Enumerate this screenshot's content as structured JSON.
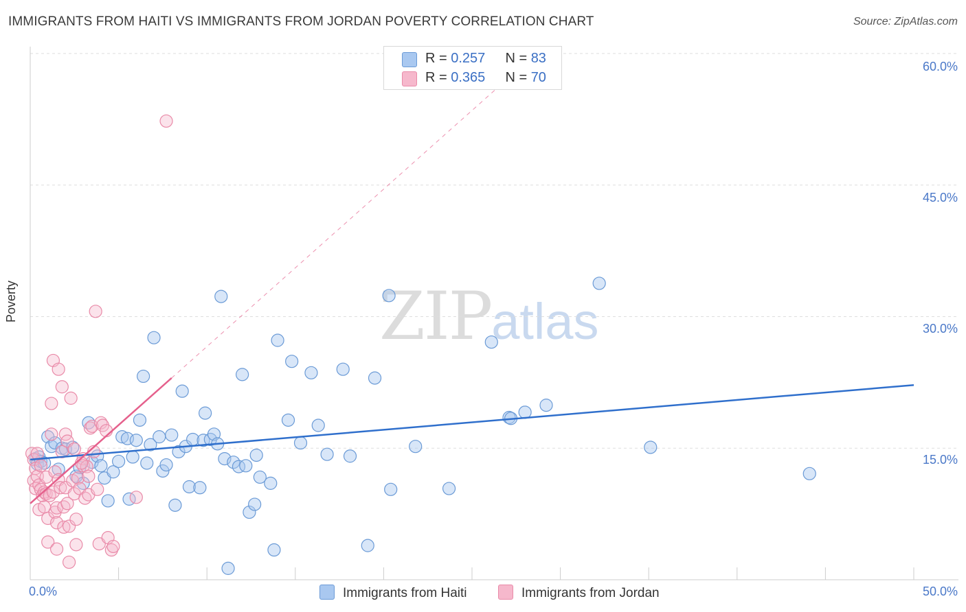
{
  "header": {
    "title": "IMMIGRANTS FROM HAITI VS IMMIGRANTS FROM JORDAN POVERTY CORRELATION CHART",
    "source": "Source: ZipAtlas.com"
  },
  "watermark": {
    "zip": "ZIP",
    "atlas": "atlas"
  },
  "colors": {
    "haiti_fill": "#a9c8f0",
    "haiti_stroke": "#6a9ad6",
    "haiti_line": "#2f6fcc",
    "jordan_fill": "#f6b8cc",
    "jordan_stroke": "#e98aa8",
    "jordan_line": "#e5608c",
    "grid": "#dddddd",
    "tick_label": "#4a78c8"
  },
  "legend": {
    "haiti": {
      "r_label": "R = ",
      "r_value": "0.257",
      "n_label": "N = ",
      "n_value": "83"
    },
    "jordan": {
      "r_label": "R = ",
      "r_value": "0.365",
      "n_label": "N = ",
      "n_value": "70"
    }
  },
  "chart_data": {
    "type": "scatter",
    "title": "IMMIGRANTS FROM HAITI VS IMMIGRANTS FROM JORDAN POVERTY CORRELATION CHART",
    "xlabel": "",
    "ylabel": "Poverty",
    "xlim": [
      0,
      50
    ],
    "ylim": [
      0,
      60
    ],
    "x_tick_labels": [
      "0.0%",
      "50.0%"
    ],
    "y_ticks": [
      15,
      30,
      45,
      60
    ],
    "y_tick_labels": [
      "15.0%",
      "30.0%",
      "45.0%",
      "60.0%"
    ],
    "grid": true,
    "legend": [
      "Immigrants from Haiti",
      "Immigrants from Jordan"
    ],
    "series": [
      {
        "name": "Immigrants from Haiti",
        "R": 0.257,
        "N": 83,
        "trend": {
          "x": [
            0,
            50
          ],
          "y": [
            13.7,
            22.2
          ],
          "style": "solid"
        },
        "points": [
          [
            0.3,
            13.8
          ],
          [
            0.4,
            13.2
          ],
          [
            0.5,
            14.0
          ],
          [
            0.6,
            13.5
          ],
          [
            0.8,
            13.3
          ],
          [
            1.0,
            16.3
          ],
          [
            1.2,
            15.2
          ],
          [
            1.4,
            15.6
          ],
          [
            1.6,
            12.6
          ],
          [
            1.8,
            15.0
          ],
          [
            2.0,
            14.9
          ],
          [
            2.4,
            15.1
          ],
          [
            2.6,
            11.8
          ],
          [
            2.8,
            12.8
          ],
          [
            3.0,
            11.0
          ],
          [
            3.3,
            17.9
          ],
          [
            3.5,
            13.4
          ],
          [
            3.8,
            14.1
          ],
          [
            4.0,
            13.0
          ],
          [
            4.2,
            11.6
          ],
          [
            4.4,
            9.0
          ],
          [
            4.7,
            12.3
          ],
          [
            5.0,
            13.5
          ],
          [
            5.2,
            16.3
          ],
          [
            5.5,
            16.1
          ],
          [
            5.6,
            9.2
          ],
          [
            5.8,
            14.0
          ],
          [
            6.0,
            15.9
          ],
          [
            6.2,
            18.2
          ],
          [
            6.4,
            23.2
          ],
          [
            6.6,
            13.3
          ],
          [
            6.8,
            15.4
          ],
          [
            7.0,
            27.6
          ],
          [
            7.3,
            16.3
          ],
          [
            7.5,
            12.4
          ],
          [
            7.7,
            13.1
          ],
          [
            8.0,
            16.5
          ],
          [
            8.2,
            8.5
          ],
          [
            8.4,
            14.6
          ],
          [
            8.6,
            21.5
          ],
          [
            8.8,
            15.2
          ],
          [
            9.0,
            10.6
          ],
          [
            9.2,
            16.0
          ],
          [
            9.6,
            10.5
          ],
          [
            9.8,
            15.9
          ],
          [
            9.9,
            19.0
          ],
          [
            10.2,
            16.0
          ],
          [
            10.4,
            16.6
          ],
          [
            10.6,
            15.5
          ],
          [
            10.8,
            32.3
          ],
          [
            11.0,
            13.8
          ],
          [
            11.2,
            1.3
          ],
          [
            11.5,
            13.4
          ],
          [
            11.8,
            12.9
          ],
          [
            12.0,
            23.4
          ],
          [
            12.2,
            13.0
          ],
          [
            12.4,
            7.7
          ],
          [
            12.7,
            8.6
          ],
          [
            12.8,
            14.2
          ],
          [
            13.0,
            11.7
          ],
          [
            13.6,
            11.0
          ],
          [
            13.8,
            3.4
          ],
          [
            14.0,
            27.3
          ],
          [
            14.6,
            18.2
          ],
          [
            14.8,
            24.9
          ],
          [
            15.3,
            15.6
          ],
          [
            15.9,
            23.6
          ],
          [
            16.3,
            17.6
          ],
          [
            16.8,
            14.3
          ],
          [
            17.7,
            24.0
          ],
          [
            18.1,
            14.1
          ],
          [
            19.1,
            3.9
          ],
          [
            19.5,
            23.0
          ],
          [
            20.3,
            32.4
          ],
          [
            20.4,
            10.3
          ],
          [
            21.8,
            15.2
          ],
          [
            23.7,
            10.4
          ],
          [
            26.1,
            27.1
          ],
          [
            27.1,
            18.5
          ],
          [
            27.2,
            18.4
          ],
          [
            28.0,
            19.1
          ],
          [
            29.2,
            19.9
          ],
          [
            32.2,
            33.8
          ],
          [
            35.1,
            15.1
          ],
          [
            44.1,
            12.1
          ]
        ]
      },
      {
        "name": "Immigrants from Jordan",
        "R": 0.365,
        "N": 70,
        "trend": {
          "x": [
            0,
            8
          ],
          "y": [
            8.7,
            23.0
          ],
          "style": "solid",
          "extended": {
            "x": [
              8,
              26.5
            ],
            "y": [
              23.0,
              56.2
            ],
            "style": "dashed"
          }
        },
        "points": [
          [
            0.1,
            14.4
          ],
          [
            0.2,
            11.3
          ],
          [
            0.2,
            13.7
          ],
          [
            0.3,
            12.7
          ],
          [
            0.3,
            10.4
          ],
          [
            0.4,
            14.4
          ],
          [
            0.4,
            11.8
          ],
          [
            0.5,
            10.8
          ],
          [
            0.5,
            8.0
          ],
          [
            0.6,
            13.0
          ],
          [
            0.6,
            10.3
          ],
          [
            0.7,
            9.6
          ],
          [
            0.8,
            10.0
          ],
          [
            0.8,
            8.3
          ],
          [
            0.9,
            11.7
          ],
          [
            0.9,
            9.8
          ],
          [
            1.0,
            7.0
          ],
          [
            1.0,
            4.3
          ],
          [
            1.1,
            9.6
          ],
          [
            1.2,
            20.1
          ],
          [
            1.2,
            16.6
          ],
          [
            1.3,
            25.0
          ],
          [
            1.3,
            10.0
          ],
          [
            1.4,
            7.7
          ],
          [
            1.4,
            12.3
          ],
          [
            1.5,
            8.2
          ],
          [
            1.5,
            6.5
          ],
          [
            1.6,
            24.0
          ],
          [
            1.6,
            11.4
          ],
          [
            1.7,
            10.5
          ],
          [
            1.8,
            22.0
          ],
          [
            1.8,
            14.6
          ],
          [
            1.9,
            8.3
          ],
          [
            1.9,
            6.0
          ],
          [
            2.0,
            16.6
          ],
          [
            2.0,
            10.5
          ],
          [
            2.1,
            15.8
          ],
          [
            2.1,
            8.7
          ],
          [
            2.2,
            2.0
          ],
          [
            2.2,
            6.1
          ],
          [
            2.3,
            20.7
          ],
          [
            2.4,
            11.3
          ],
          [
            2.5,
            14.9
          ],
          [
            2.5,
            9.8
          ],
          [
            2.6,
            4.0
          ],
          [
            2.6,
            6.9
          ],
          [
            2.7,
            11.6
          ],
          [
            2.8,
            10.4
          ],
          [
            3.0,
            13.8
          ],
          [
            3.0,
            13.0
          ],
          [
            3.1,
            9.3
          ],
          [
            3.2,
            12.9
          ],
          [
            3.3,
            11.8
          ],
          [
            3.3,
            9.7
          ],
          [
            3.4,
            17.3
          ],
          [
            3.5,
            17.5
          ],
          [
            3.6,
            14.6
          ],
          [
            3.7,
            30.6
          ],
          [
            3.8,
            10.3
          ],
          [
            3.9,
            4.1
          ],
          [
            4.0,
            17.9
          ],
          [
            4.1,
            17.6
          ],
          [
            4.3,
            17.0
          ],
          [
            4.4,
            4.8
          ],
          [
            4.6,
            3.4
          ],
          [
            4.7,
            3.8
          ],
          [
            6.0,
            9.4
          ],
          [
            7.7,
            52.3
          ],
          [
            1.5,
            3.5
          ],
          [
            2.9,
            13.3
          ]
        ]
      }
    ]
  },
  "legend_bottom": {
    "haiti_label": "Immigrants from Haiti",
    "jordan_label": "Immigrants from Jordan"
  }
}
